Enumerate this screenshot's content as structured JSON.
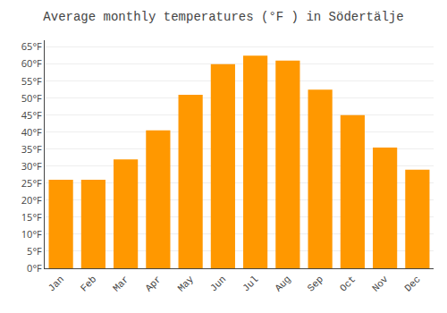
{
  "chart_data": {
    "type": "bar",
    "title": "Average monthly temperatures (°F ) in Södertälje",
    "categories": [
      "Jan",
      "Feb",
      "Mar",
      "Apr",
      "May",
      "Jun",
      "Jul",
      "Aug",
      "Sep",
      "Oct",
      "Nov",
      "Dec"
    ],
    "values": [
      26,
      26,
      32,
      40.5,
      51,
      60,
      62.5,
      61,
      52.5,
      45,
      35.5,
      29
    ],
    "color": "#FF9800",
    "ylim": [
      0,
      67
    ],
    "yticks": [
      {
        "value": 0,
        "label": "0°F"
      },
      {
        "value": 5,
        "label": "5°F"
      },
      {
        "value": 10,
        "label": "10°F"
      },
      {
        "value": 15,
        "label": "15°F"
      },
      {
        "value": 20,
        "label": "20°F"
      },
      {
        "value": 25,
        "label": "25°F"
      },
      {
        "value": 30,
        "label": "30°F"
      },
      {
        "value": 35,
        "label": "35°F"
      },
      {
        "value": 40,
        "label": "40°F"
      },
      {
        "value": 45,
        "label": "45°F"
      },
      {
        "value": 50,
        "label": "50°F"
      },
      {
        "value": 55,
        "label": "55°F"
      },
      {
        "value": 60,
        "label": "60°F"
      },
      {
        "value": 65,
        "label": "65°F"
      }
    ],
    "grid": true
  }
}
